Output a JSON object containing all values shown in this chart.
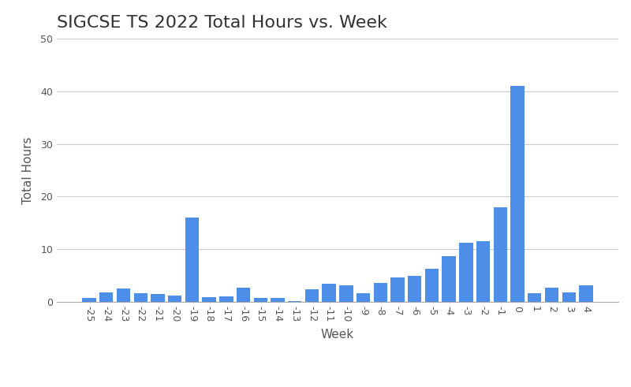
{
  "weeks": [
    -25,
    -24,
    -23,
    -22,
    -21,
    -20,
    -19,
    -18,
    -17,
    -16,
    -15,
    -14,
    -13,
    -12,
    -11,
    -10,
    -9,
    -8,
    -7,
    -6,
    -5,
    -4,
    -3,
    -2,
    -1,
    0,
    1,
    2,
    3,
    4
  ],
  "values": [
    0.8,
    1.8,
    2.5,
    1.7,
    1.5,
    1.2,
    16.0,
    0.9,
    1.0,
    2.7,
    0.8,
    0.8,
    0.1,
    2.4,
    3.4,
    3.2,
    1.7,
    3.6,
    4.6,
    5.0,
    6.3,
    8.7,
    11.2,
    11.5,
    18.0,
    41.0,
    1.6,
    2.7,
    1.8,
    3.2
  ],
  "bar_color": "#4C8EE8",
  "title": "SIGCSE TS 2022 Total Hours vs. Week",
  "xlabel": "Week",
  "ylabel": "Total Hours",
  "ylim": [
    0,
    50
  ],
  "yticks": [
    0,
    10,
    20,
    30,
    40,
    50
  ],
  "background_color": "#ffffff",
  "grid_color": "#cccccc",
  "title_fontsize": 16,
  "label_fontsize": 11,
  "tick_fontsize": 9
}
